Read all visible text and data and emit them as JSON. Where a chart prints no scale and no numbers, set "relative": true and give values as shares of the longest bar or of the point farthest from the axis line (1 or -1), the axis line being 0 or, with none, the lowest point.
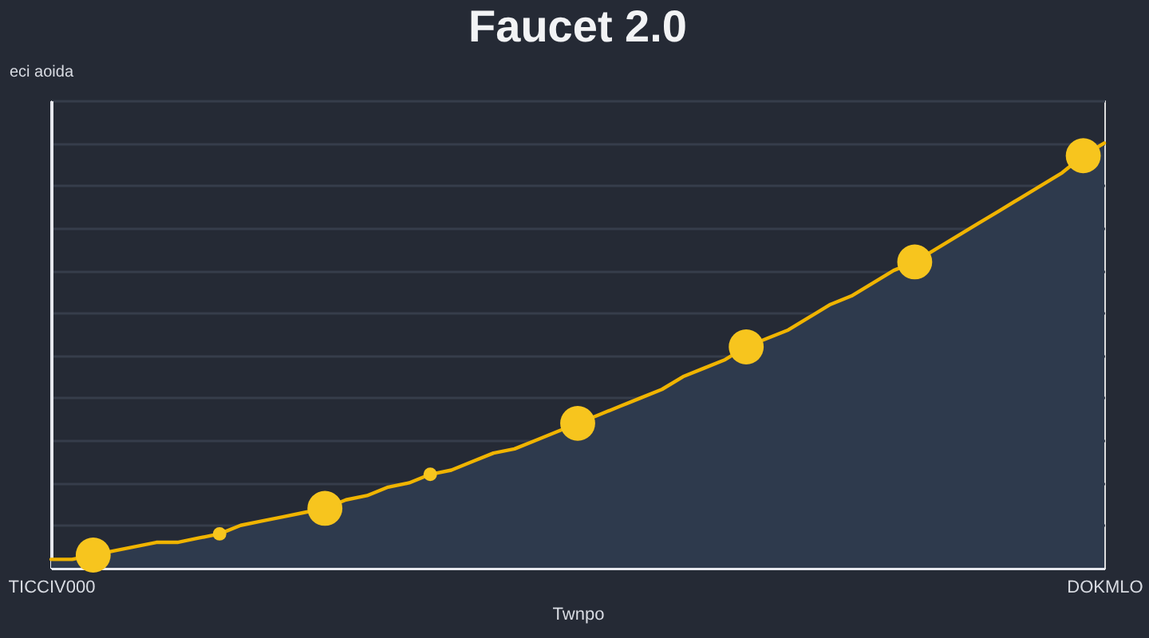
{
  "chart_data": {
    "type": "area",
    "title": "Faucet 2.0",
    "xlabel": "Twnpo",
    "annotations": [
      "eci aoida"
    ],
    "relative": true,
    "grid": "y",
    "categories": [
      "TICCIV000",
      null,
      null,
      null,
      null,
      null,
      null,
      null,
      null,
      null,
      null,
      null,
      null,
      null,
      null,
      null,
      null,
      null,
      null,
      null,
      null,
      null,
      null,
      null,
      null,
      null,
      null,
      null,
      null,
      null,
      null,
      null,
      null,
      null,
      null,
      null,
      null,
      null,
      null,
      null,
      null,
      null,
      null,
      null,
      null,
      null,
      null,
      null,
      null,
      null,
      "DOKMLO"
    ],
    "series": [
      {
        "color": "#f0b400",
        "values": [
          0.02,
          0.02,
          0.03,
          0.04,
          0.05,
          0.06,
          0.06,
          0.07,
          0.08,
          0.1,
          0.11,
          0.12,
          0.13,
          0.14,
          0.16,
          0.17,
          0.19,
          0.2,
          0.22,
          0.23,
          0.25,
          0.27,
          0.28,
          0.3,
          0.32,
          0.34,
          0.36,
          0.38,
          0.4,
          0.42,
          0.45,
          0.47,
          0.49,
          0.52,
          0.54,
          0.56,
          0.59,
          0.62,
          0.64,
          0.67,
          0.7,
          0.72,
          0.75,
          0.78,
          0.81,
          0.84,
          0.87,
          0.9,
          0.93,
          0.97,
          1
        ]
      },
      {
        "type": "bubble",
        "color": "#f7c51e",
        "values": [
          null,
          null,
          0.03,
          null,
          null,
          null,
          null,
          null,
          0.08,
          null,
          null,
          null,
          null,
          0.14,
          null,
          null,
          null,
          null,
          0.22,
          null,
          null,
          null,
          null,
          null,
          null,
          0.34,
          null,
          null,
          null,
          null,
          null,
          null,
          null,
          0.52,
          null,
          null,
          null,
          null,
          null,
          null,
          null,
          0.72,
          null,
          null,
          null,
          null,
          null,
          null,
          null,
          0.97,
          null
        ],
        "sizes": [
          null,
          null,
          1,
          null,
          null,
          null,
          null,
          null,
          0.15,
          null,
          null,
          null,
          null,
          1,
          null,
          null,
          null,
          null,
          0.15,
          null,
          null,
          null,
          null,
          null,
          null,
          1,
          null,
          null,
          null,
          null,
          null,
          null,
          null,
          1,
          null,
          null,
          null,
          null,
          null,
          null,
          null,
          1,
          null,
          null,
          null,
          null,
          null,
          null,
          null,
          1,
          null
        ]
      }
    ]
  }
}
